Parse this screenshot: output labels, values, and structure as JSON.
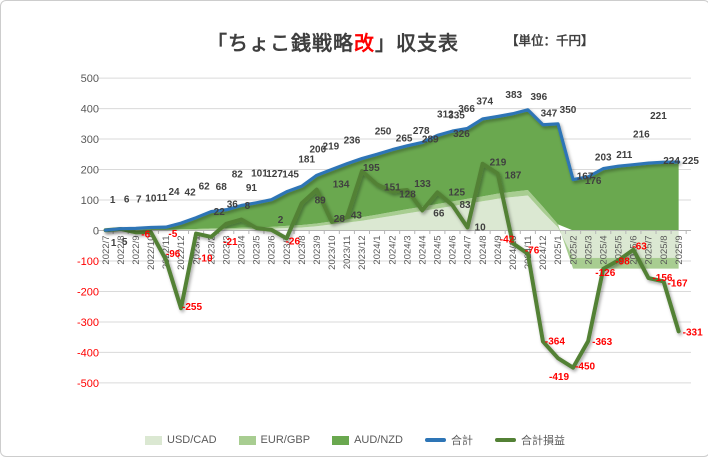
{
  "title": {
    "prefix": "「ちょこ銭戦略",
    "accent": "改",
    "suffix": "」収支表"
  },
  "unit_label": "【単位：千円】",
  "colors": {
    "accent_red": "#ff0000",
    "total_blue": "#2e75b6",
    "pl_green": "#538135",
    "area_light": "#dbe8d2",
    "area_mid": "#a8cd91",
    "area_dark": "#6aa84f",
    "grid": "#dadada",
    "zero_axis": "#b5b5b5",
    "axis_text": "#595959",
    "label_dark": "#404040",
    "negative_label": "#ff0000"
  },
  "chart_data": {
    "type": "area",
    "title": "「ちょこ銭戦略改」収支表",
    "subtitle": "【単位：千円】",
    "categories": [
      "2022/7",
      "2022/8",
      "2022/9",
      "2022/10",
      "2022/11",
      "2022/12",
      "2023/1",
      "2023/2",
      "2023/3",
      "2023/4",
      "2023/5",
      "2023/6",
      "2023/7",
      "2023/8",
      "2023/9",
      "2023/10",
      "2023/11",
      "2023/12",
      "2024/1",
      "2024/2",
      "2024/3",
      "2024/4",
      "2024/5",
      "2024/6",
      "2024/7",
      "2024/8",
      "2024/9",
      "2024/10",
      "2024/11",
      "2024/12",
      "2025/1",
      "2025/2",
      "2025/3",
      "2025/4",
      "2025/5",
      "2025/6",
      "2025/7",
      "2025/8",
      "2025/9"
    ],
    "yticks": [
      500,
      400,
      300,
      200,
      100,
      0,
      -100,
      -200,
      -300,
      -400,
      -500
    ],
    "ylim": [
      -500,
      500
    ],
    "grid": true,
    "legend_position": "bottom",
    "series": [
      {
        "name": "USD/CAD",
        "type": "area",
        "color": "#dbe8d2",
        "estimated": true,
        "values": [
          0,
          1,
          1,
          1,
          1,
          2,
          2,
          3,
          3,
          4,
          5,
          6,
          8,
          10,
          14,
          20,
          26,
          32,
          40,
          48,
          56,
          64,
          72,
          80,
          88,
          96,
          104,
          110,
          115,
          60,
          10,
          -90,
          -90,
          -90,
          -90,
          -90,
          -90,
          -90,
          -90
        ]
      },
      {
        "name": "EUR/GBP",
        "type": "area",
        "color": "#a8cd91",
        "estimated": true,
        "values": [
          0,
          1,
          1,
          1,
          1,
          2,
          3,
          4,
          4,
          5,
          5,
          6,
          7,
          8,
          9,
          10,
          11,
          12,
          12,
          13,
          14,
          14,
          15,
          15,
          16,
          16,
          17,
          17,
          18,
          18,
          10,
          -35,
          -35,
          -35,
          -35,
          -35,
          -35,
          -35,
          -35
        ]
      },
      {
        "name": "AUD/NZD",
        "type": "area",
        "color": "#6aa84f",
        "estimated": true,
        "values": [
          1,
          4,
          5,
          8,
          9,
          20,
          37,
          55,
          61,
          73,
          81,
          89,
          112,
          127,
          158,
          170,
          182,
          192,
          198,
          204,
          208,
          211,
          225,
          231,
          231,
          254,
          253,
          256,
          263,
          269,
          330,
          167,
          176,
          203,
          211,
          216,
          221,
          224,
          225
        ]
      },
      {
        "name": "合計",
        "type": "line",
        "color": "#2e75b6",
        "values": [
          1,
          6,
          7,
          10,
          11,
          24,
          42,
          62,
          68,
          82,
          91,
          101,
          127,
          145,
          181,
          200,
          219,
          236,
          250,
          265,
          278,
          289,
          312,
          326,
          335,
          366,
          374,
          383,
          396,
          347,
          350,
          167,
          176,
          203,
          211,
          216,
          221,
          224,
          225
        ]
      },
      {
        "name": "合計損益",
        "type": "line",
        "color": "#538135",
        "values": [
          1,
          5,
          -6,
          -5,
          -96,
          -255,
          -10,
          -21,
          22,
          36,
          8,
          2,
          -26,
          89,
          134,
          28,
          43,
          195,
          151,
          128,
          133,
          66,
          125,
          83,
          10,
          219,
          187,
          -42,
          -76,
          -364,
          -419,
          -450,
          -363,
          -126,
          -98,
          -63,
          -156,
          -167,
          -331
        ]
      }
    ]
  }
}
